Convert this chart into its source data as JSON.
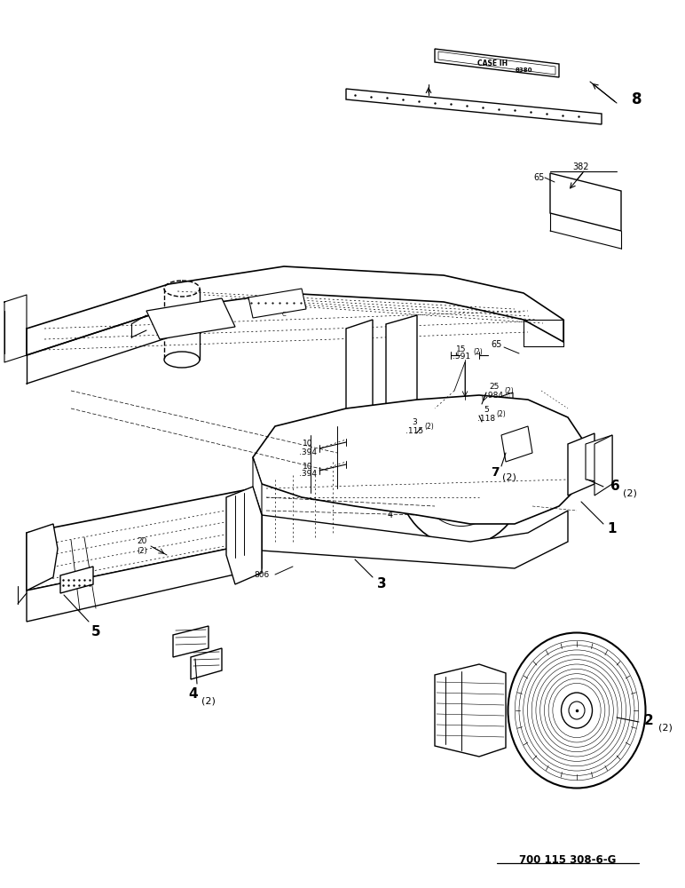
{
  "figure_width": 7.72,
  "figure_height": 10.0,
  "dpi": 100,
  "bg_color": "#ffffff",
  "part_number_text": "700 115 308-6-G",
  "label_8": "8",
  "label_1": "1",
  "label_2": "2",
  "label_3": "3",
  "label_4": "4",
  "label_5": "5",
  "label_6": "6",
  "label_7": "7",
  "label_382": "382",
  "label_65": "65",
  "label_806": "806",
  "label_20": "20",
  "dim_15": "15",
  "dim_591": ".591",
  "dim_10a": "10",
  "dim_394a": ".394",
  "dim_10b": "10",
  "dim_394b": ".394",
  "dim_3": "3",
  "dim_115": ".115",
  "dim_25": "25",
  "dim_984": ".984",
  "dim_5": "5",
  "dim_118": ".118"
}
